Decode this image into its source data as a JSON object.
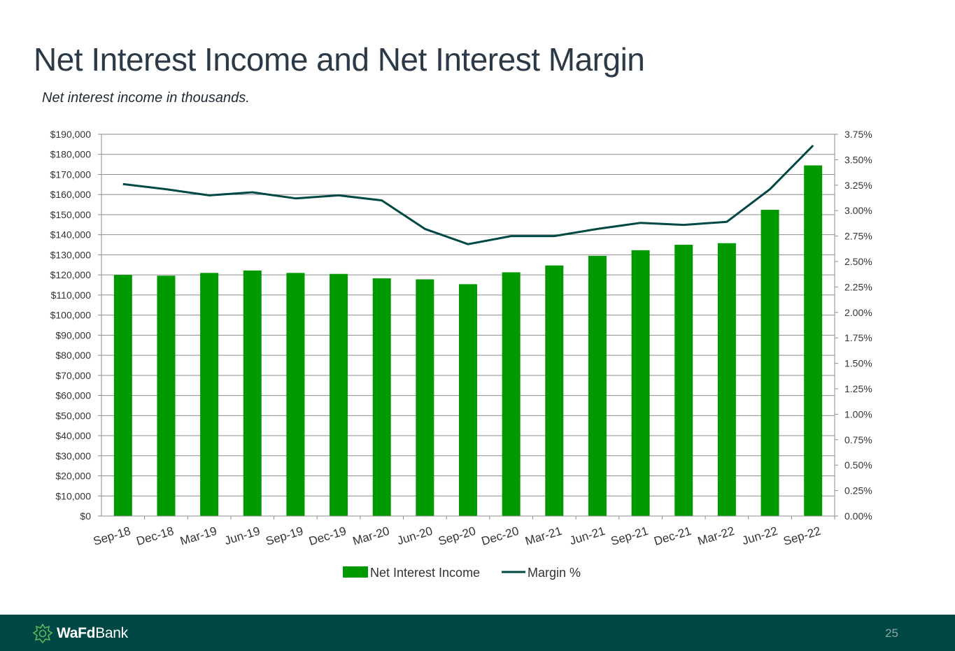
{
  "title": "Net Interest Income and Net Interest Margin",
  "subtitle": "Net interest income in thousands.",
  "colors": {
    "bar": "#009900",
    "line": "#004843",
    "title": "#2c3a47",
    "footer": "#004843"
  },
  "chart_data": {
    "type": "bar+line",
    "categories": [
      "Sep-18",
      "Dec-18",
      "Mar-19",
      "Jun-19",
      "Sep-19",
      "Dec-19",
      "Mar-20",
      "Jun-20",
      "Sep-20",
      "Dec-20",
      "Mar-21",
      "Jun-21",
      "Sep-21",
      "Dec-21",
      "Mar-22",
      "Jun-22",
      "Sep-22"
    ],
    "series": [
      {
        "name": "Net Interest Income",
        "type": "bar",
        "axis": "left",
        "values": [
          120000,
          119600,
          121000,
          122200,
          121000,
          120500,
          118300,
          117800,
          115400,
          121300,
          124700,
          129500,
          132300,
          135000,
          135800,
          152400,
          174500
        ]
      },
      {
        "name": "Margin %",
        "type": "line",
        "axis": "right",
        "values": [
          3.26,
          3.21,
          3.15,
          3.18,
          3.12,
          3.15,
          3.1,
          2.82,
          2.67,
          2.75,
          2.75,
          2.82,
          2.88,
          2.86,
          2.89,
          3.21,
          3.64
        ]
      }
    ],
    "y_left": {
      "min": 0,
      "max": 190000,
      "step": 10000,
      "tick_labels": [
        "$0",
        "$10,000",
        "$20,000",
        "$30,000",
        "$40,000",
        "$50,000",
        "$60,000",
        "$70,000",
        "$80,000",
        "$90,000",
        "$100,000",
        "$110,000",
        "$120,000",
        "$130,000",
        "$140,000",
        "$150,000",
        "$160,000",
        "$170,000",
        "$180,000",
        "$190,000"
      ]
    },
    "y_right": {
      "min": 0,
      "max": 3.75,
      "step": 0.25,
      "tick_labels": [
        "0.00%",
        "0.25%",
        "0.50%",
        "0.75%",
        "1.00%",
        "1.25%",
        "1.50%",
        "1.75%",
        "2.00%",
        "2.25%",
        "2.50%",
        "2.75%",
        "3.00%",
        "3.25%",
        "3.50%",
        "3.75%"
      ]
    },
    "legend": [
      "Net Interest Income",
      "Margin %"
    ],
    "legend_position": "bottom",
    "grid": true
  },
  "footer": {
    "logo_bold": "WaFd",
    "logo_regular": "Bank",
    "logo_icon": "wafd-leaf-icon",
    "page_number": "25"
  }
}
